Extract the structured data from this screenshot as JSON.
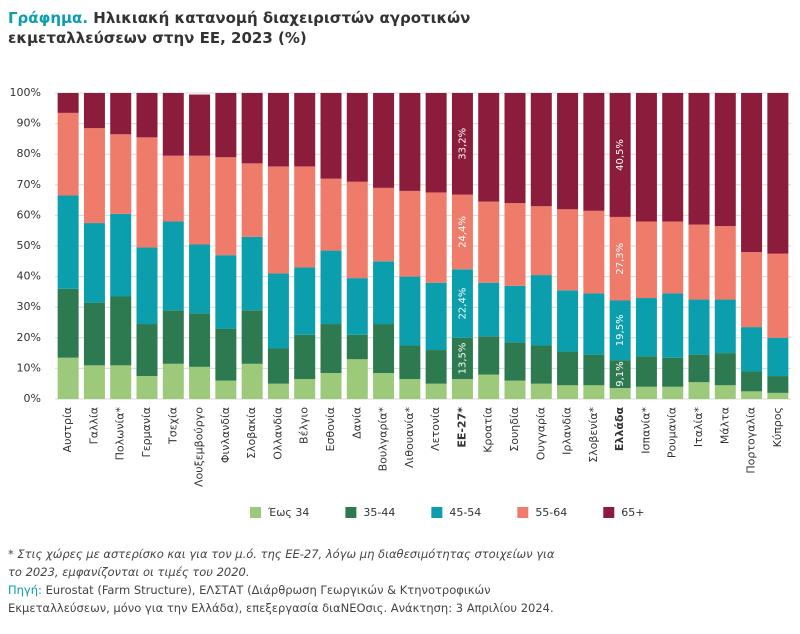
{
  "chart_data": {
    "type": "stacked_bar",
    "title_label": "Γράφημα.",
    "title": "Ηλικιακή κατανομή διαχειριστών αγροτικών εκμεταλλεύσεων στην ΕΕ, 2023 (%)",
    "categories": [
      "Αυστρία",
      "Γαλλία",
      "Πολωνία*",
      "Γερμανία",
      "Τσεχία",
      "Λουξεμβούργο",
      "Φινλανδία",
      "Σλοβακία",
      "Ολλανδία",
      "Βέλγιο",
      "Εσθονία",
      "Δανία",
      "Βουλγαρία*",
      "Λιθουανία*",
      "Λετονία",
      "ΕΕ-27*",
      "Κροατία",
      "Σουηδία",
      "Ουγγαρία",
      "Ιρλανδία",
      "Σλοβενία*",
      "Ελλάδα",
      "Ισπανία*",
      "Ρουμανία",
      "Ιταλία*",
      "Μάλτα",
      "Πορτογαλία",
      "Κύπρος"
    ],
    "series": [
      {
        "name": "Έως 34",
        "color": "#9dc97a",
        "values": [
          13.5,
          11,
          11,
          7.5,
          11.5,
          10.5,
          6,
          11.5,
          5,
          6.5,
          8.5,
          13,
          8.5,
          6.5,
          5,
          6.5,
          8,
          6,
          5,
          4.5,
          4.5,
          3.6,
          4,
          4,
          5.5,
          4.5,
          2.5,
          2
        ]
      },
      {
        "name": "35-44",
        "color": "#2e7a50",
        "values": [
          22.5,
          20.5,
          22.5,
          17,
          17.5,
          17.5,
          17,
          17.5,
          11.5,
          14.5,
          16,
          8,
          16,
          11,
          11,
          13.5,
          12.5,
          12.5,
          12.5,
          11,
          10,
          9.1,
          10,
          9.5,
          9,
          10.5,
          6.5,
          5.5
        ],
        "value_labels": [
          null,
          null,
          null,
          null,
          null,
          null,
          null,
          null,
          null,
          null,
          null,
          null,
          null,
          null,
          null,
          "13,5%",
          null,
          null,
          null,
          null,
          null,
          "9,1%",
          null,
          null,
          null,
          null,
          null,
          null
        ]
      },
      {
        "name": "45-54",
        "color": "#0b9fae",
        "values": [
          30.5,
          26,
          27,
          25,
          29,
          22.5,
          24,
          24,
          24.5,
          22,
          24,
          18.5,
          20.5,
          22.5,
          22,
          22.4,
          17.5,
          18.5,
          23,
          20,
          20,
          19.5,
          19,
          21,
          18,
          17.5,
          14.5,
          12.5
        ],
        "value_labels": [
          null,
          null,
          null,
          null,
          null,
          null,
          null,
          null,
          null,
          null,
          null,
          null,
          null,
          null,
          null,
          "22,4%",
          null,
          null,
          null,
          null,
          null,
          "19,5%",
          null,
          null,
          null,
          null,
          null,
          null
        ]
      },
      {
        "name": "55-64",
        "color": "#ef7b6b",
        "values": [
          27,
          31,
          26,
          36,
          21.5,
          29,
          32,
          24,
          35,
          33,
          23.5,
          31.5,
          24,
          28,
          29.5,
          24.4,
          26.5,
          27,
          22.5,
          26.5,
          27,
          27.3,
          25,
          23.5,
          24.5,
          24,
          24.5,
          27.5
        ],
        "value_labels": [
          null,
          null,
          null,
          null,
          null,
          null,
          null,
          null,
          null,
          null,
          null,
          null,
          null,
          null,
          null,
          "24,4%",
          null,
          null,
          null,
          null,
          null,
          "27,3%",
          null,
          null,
          null,
          null,
          null,
          null
        ]
      },
      {
        "name": "65+",
        "color": "#8c1c3b",
        "values": [
          6.5,
          11.5,
          13.5,
          14.5,
          20.5,
          20,
          21,
          23,
          24,
          24,
          28,
          29,
          31,
          32,
          32.5,
          33.2,
          35.5,
          36,
          37,
          38,
          38.5,
          40.5,
          42,
          42,
          43,
          43.5,
          52,
          52.5
        ],
        "value_labels": [
          null,
          null,
          null,
          null,
          null,
          null,
          null,
          null,
          null,
          null,
          null,
          null,
          null,
          null,
          null,
          "33,2%",
          null,
          null,
          null,
          null,
          null,
          "40,5%",
          null,
          null,
          null,
          null,
          null,
          null
        ]
      }
    ],
    "ylim": [
      0,
      100
    ],
    "yticks": [
      {
        "value": 0,
        "label": "0%"
      },
      {
        "value": 10,
        "label": "10%"
      },
      {
        "value": 20,
        "label": "20%"
      },
      {
        "value": 30,
        "label": "30%"
      },
      {
        "value": 40,
        "label": "40%"
      },
      {
        "value": 50,
        "label": "50%"
      },
      {
        "value": 60,
        "label": "60%"
      },
      {
        "value": 70,
        "label": "70%"
      },
      {
        "value": 80,
        "label": "80%"
      },
      {
        "value": 90,
        "label": "90%"
      },
      {
        "value": 100,
        "label": "100%"
      }
    ],
    "grid": true,
    "legend": "bottom",
    "note": "* Στις χώρες με αστερίσκο και για τον μ.ό. της ΕΕ-27, λόγω μη διαθεσιμότητας στοιχείων για το 2023, εμφανίζονται οι τιμές του 2020.",
    "source_label": "Πηγή:",
    "source": "Eurostat (Farm Structure), ΕΛΣΤΑΤ (Διάρθρωση Γεωργικών & Κτηνοτροφικών Εκμεταλλεύσεων, μόνο για την Ελλάδα), επεξεργασία διαΝΕΟσις. Ανάκτηση: 3 Απριλίου 2024."
  }
}
